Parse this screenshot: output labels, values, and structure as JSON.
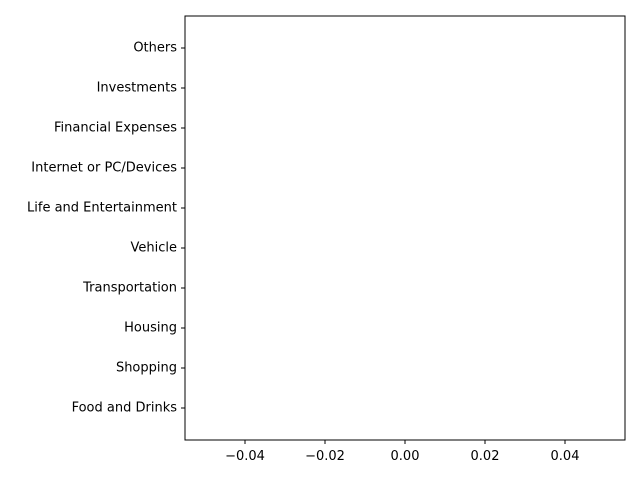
{
  "chart_data": {
    "type": "bar",
    "orientation": "horizontal",
    "categories": [
      "Food and Drinks",
      "Shopping",
      "Housing",
      "Transportation",
      "Vehicle",
      "Life and Entertainment",
      "Internet or PC/Devices",
      "Financial Expenses",
      "Investments",
      "Others"
    ],
    "values": [
      0,
      0,
      0,
      0,
      0,
      0,
      0,
      0,
      0,
      0
    ],
    "title": "",
    "xlabel": "",
    "ylabel": "",
    "xlim": [
      -0.055,
      0.055
    ],
    "xticks": [
      -0.04,
      -0.02,
      0.0,
      0.02,
      0.04
    ],
    "xtick_labels": [
      "−0.04",
      "−0.02",
      "0.00",
      "0.02",
      "0.04"
    ],
    "grid": false,
    "legend": "none",
    "colors": {
      "axis": "#000000",
      "background": "#ffffff"
    }
  }
}
